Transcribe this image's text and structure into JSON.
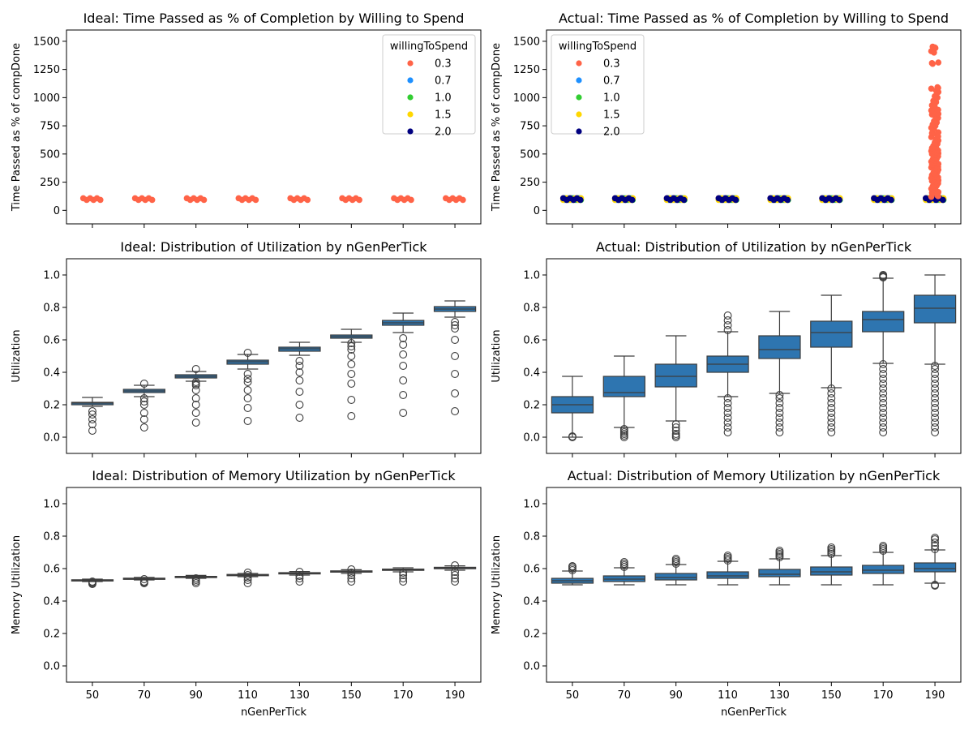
{
  "chart_data": [
    {
      "type": "scatter",
      "title": "Ideal: Time Passed as % of Completion by Willing to Spend",
      "xlabel": "",
      "ylabel": "Time Passed as % of compDone",
      "categories": [
        "50",
        "70",
        "90",
        "110",
        "130",
        "150",
        "170",
        "190"
      ],
      "ylim": [
        -120,
        1600
      ],
      "yticks": [
        0,
        250,
        500,
        750,
        1000,
        1250,
        1500
      ],
      "show_xticklabels": false,
      "legend": {
        "title": "willingToSpend",
        "placement": "top-right"
      },
      "series": [
        {
          "name": "0.3",
          "color": "#ff6347",
          "values": [
            100,
            100,
            100,
            100,
            100,
            100,
            100,
            100
          ]
        },
        {
          "name": "0.7",
          "color": "#1e90ff",
          "values": []
        },
        {
          "name": "1.0",
          "color": "#32cd32",
          "values": []
        },
        {
          "name": "1.5",
          "color": "#ffd700",
          "values": []
        },
        {
          "name": "2.0",
          "color": "#000080",
          "values": []
        }
      ]
    },
    {
      "type": "scatter",
      "title": "Actual: Time Passed as % of Completion by Willing to Spend",
      "xlabel": "",
      "ylabel": "Time Passed as % of compDone",
      "categories": [
        "50",
        "70",
        "90",
        "110",
        "130",
        "150",
        "170",
        "190"
      ],
      "ylim": [
        -120,
        1600
      ],
      "yticks": [
        0,
        250,
        500,
        750,
        1000,
        1250,
        1500
      ],
      "show_xticklabels": false,
      "legend": {
        "title": "willingToSpend",
        "placement": "top-left"
      },
      "series": [
        {
          "name": "0.3",
          "color": "#ff6347",
          "values": [
            100,
            100,
            100,
            100,
            100,
            100,
            100,
            100
          ]
        },
        {
          "name": "0.7",
          "color": "#1e90ff",
          "values": [
            100,
            100,
            100,
            100,
            100,
            100,
            100,
            100
          ]
        },
        {
          "name": "1.0",
          "color": "#32cd32",
          "values": [
            100,
            100,
            100,
            100,
            100,
            100,
            100,
            100
          ]
        },
        {
          "name": "1.5",
          "color": "#ffd700",
          "values": [
            100,
            100,
            100,
            100,
            100,
            100,
            100,
            100
          ]
        },
        {
          "name": "2.0",
          "color": "#000080",
          "values": [
            100,
            100,
            100,
            100,
            100,
            100,
            100,
            100
          ]
        }
      ],
      "spread_category": "190",
      "spread_values": [
        120,
        150,
        180,
        200,
        220,
        240,
        260,
        280,
        300,
        320,
        340,
        360,
        380,
        400,
        420,
        440,
        460,
        480,
        500,
        520,
        540,
        560,
        590,
        620,
        650,
        680,
        720,
        750,
        780,
        820,
        850,
        880,
        920,
        960,
        1000,
        1050,
        1080,
        1300,
        1400,
        1440
      ]
    },
    {
      "type": "box",
      "title": "Ideal: Distribution of Utilization by nGenPerTick",
      "xlabel": "",
      "ylabel": "Utilization",
      "categories": [
        "50",
        "70",
        "90",
        "110",
        "130",
        "150",
        "170",
        "190"
      ],
      "ylim": [
        -0.1,
        1.1
      ],
      "yticks": [
        0.0,
        0.2,
        0.4,
        0.6,
        0.8,
        1.0
      ],
      "show_xticklabels": false,
      "color": "#2e75b0",
      "boxes": [
        {
          "whislo": 0.19,
          "q1": 0.2,
          "med": 0.21,
          "q3": 0.215,
          "whishi": 0.245,
          "fliers": [
            0.04,
            0.08,
            0.11,
            0.14,
            0.16
          ]
        },
        {
          "whislo": 0.25,
          "q1": 0.275,
          "med": 0.285,
          "q3": 0.295,
          "whishi": 0.32,
          "fliers": [
            0.06,
            0.11,
            0.15,
            0.2,
            0.22,
            0.24,
            0.33
          ]
        },
        {
          "whislo": 0.345,
          "q1": 0.365,
          "med": 0.375,
          "q3": 0.385,
          "whishi": 0.405,
          "fliers": [
            0.09,
            0.15,
            0.2,
            0.24,
            0.29,
            0.32,
            0.33,
            0.34,
            0.42
          ]
        },
        {
          "whislo": 0.42,
          "q1": 0.45,
          "med": 0.465,
          "q3": 0.475,
          "whishi": 0.51,
          "fliers": [
            0.1,
            0.18,
            0.24,
            0.29,
            0.34,
            0.36,
            0.39,
            0.52
          ]
        },
        {
          "whislo": 0.505,
          "q1": 0.53,
          "med": 0.545,
          "q3": 0.555,
          "whishi": 0.585,
          "fliers": [
            0.12,
            0.2,
            0.28,
            0.35,
            0.4,
            0.44,
            0.47
          ]
        },
        {
          "whislo": 0.585,
          "q1": 0.61,
          "med": 0.62,
          "q3": 0.63,
          "whishi": 0.665,
          "fliers": [
            0.13,
            0.23,
            0.33,
            0.39,
            0.45,
            0.5,
            0.54,
            0.56,
            0.58
          ]
        },
        {
          "whislo": 0.645,
          "q1": 0.69,
          "med": 0.705,
          "q3": 0.72,
          "whishi": 0.765,
          "fliers": [
            0.15,
            0.26,
            0.35,
            0.44,
            0.51,
            0.57,
            0.61
          ]
        },
        {
          "whislo": 0.74,
          "q1": 0.775,
          "med": 0.79,
          "q3": 0.805,
          "whishi": 0.84,
          "fliers": [
            0.16,
            0.27,
            0.39,
            0.5,
            0.6,
            0.67,
            0.69,
            0.71
          ]
        }
      ]
    },
    {
      "type": "box",
      "title": "Actual: Distribution of Utilization by nGenPerTick",
      "xlabel": "",
      "ylabel": "Utilization",
      "categories": [
        "50",
        "70",
        "90",
        "110",
        "130",
        "150",
        "170",
        "190"
      ],
      "ylim": [
        -0.1,
        1.1
      ],
      "yticks": [
        0.0,
        0.2,
        0.4,
        0.6,
        0.8,
        1.0
      ],
      "show_xticklabels": false,
      "color": "#2e75b0",
      "boxes": [
        {
          "whislo": 0.0,
          "q1": 0.15,
          "med": 0.2,
          "q3": 0.25,
          "whishi": 0.375,
          "fliers": [
            0.0,
            0.005
          ]
        },
        {
          "whislo": 0.06,
          "q1": 0.25,
          "med": 0.275,
          "q3": 0.375,
          "whishi": 0.5,
          "fliers": [
            0.0,
            0.01,
            0.02,
            0.03,
            0.04,
            0.05
          ]
        },
        {
          "whislo": 0.1,
          "q1": 0.31,
          "med": 0.375,
          "q3": 0.45,
          "whishi": 0.625,
          "fliers": [
            0.0,
            0.01,
            0.02,
            0.04,
            0.06,
            0.08
          ]
        },
        {
          "whislo": 0.25,
          "q1": 0.4,
          "med": 0.45,
          "q3": 0.5,
          "whishi": 0.65,
          "fliers": [
            0.03,
            0.06,
            0.09,
            0.12,
            0.15,
            0.18,
            0.21,
            0.24,
            0.66,
            0.69,
            0.72,
            0.75
          ]
        },
        {
          "whislo": 0.27,
          "q1": 0.485,
          "med": 0.54,
          "q3": 0.625,
          "whishi": 0.775,
          "fliers": [
            0.03,
            0.06,
            0.09,
            0.12,
            0.15,
            0.18,
            0.21,
            0.24,
            0.26
          ]
        },
        {
          "whislo": 0.305,
          "q1": 0.555,
          "med": 0.645,
          "q3": 0.715,
          "whishi": 0.875,
          "fliers": [
            0.03,
            0.06,
            0.09,
            0.12,
            0.15,
            0.18,
            0.21,
            0.24,
            0.27,
            0.3
          ]
        },
        {
          "whislo": 0.455,
          "q1": 0.65,
          "med": 0.725,
          "q3": 0.775,
          "whishi": 0.98,
          "fliers": [
            0.03,
            0.06,
            0.09,
            0.12,
            0.15,
            0.18,
            0.21,
            0.24,
            0.27,
            0.3,
            0.33,
            0.36,
            0.39,
            0.42,
            0.45,
            0.985,
            0.99,
            0.995,
            1.0
          ]
        },
        {
          "whislo": 0.45,
          "q1": 0.705,
          "med": 0.795,
          "q3": 0.875,
          "whishi": 1.0,
          "fliers": [
            0.03,
            0.06,
            0.09,
            0.12,
            0.15,
            0.18,
            0.21,
            0.24,
            0.27,
            0.3,
            0.33,
            0.36,
            0.39,
            0.42,
            0.44
          ]
        }
      ]
    },
    {
      "type": "box",
      "title": "Ideal: Distribution of Memory Utilization by nGenPerTick",
      "xlabel": "nGenPerTick",
      "ylabel": "Memory Utilization",
      "categories": [
        "50",
        "70",
        "90",
        "110",
        "130",
        "150",
        "170",
        "190"
      ],
      "ylim": [
        -0.1,
        1.1
      ],
      "yticks": [
        0.0,
        0.2,
        0.4,
        0.6,
        0.8,
        1.0
      ],
      "show_xticklabels": true,
      "color": "#2e75b0",
      "boxes": [
        {
          "whislo": 0.52,
          "q1": 0.525,
          "med": 0.528,
          "q3": 0.531,
          "whishi": 0.535,
          "fliers": [
            0.505,
            0.51,
            0.515,
            0.52
          ]
        },
        {
          "whislo": 0.53,
          "q1": 0.535,
          "med": 0.538,
          "q3": 0.541,
          "whishi": 0.546,
          "fliers": [
            0.51,
            0.515,
            0.52,
            0.535
          ]
        },
        {
          "whislo": 0.54,
          "q1": 0.546,
          "med": 0.549,
          "q3": 0.552,
          "whishi": 0.558,
          "fliers": [
            0.51,
            0.52,
            0.53,
            0.54
          ]
        },
        {
          "whislo": 0.55,
          "q1": 0.556,
          "med": 0.56,
          "q3": 0.564,
          "whishi": 0.57,
          "fliers": [
            0.51,
            0.53,
            0.545,
            0.56,
            0.575
          ]
        },
        {
          "whislo": 0.56,
          "q1": 0.567,
          "med": 0.571,
          "q3": 0.575,
          "whishi": 0.582,
          "fliers": [
            0.52,
            0.54,
            0.555,
            0.58
          ]
        },
        {
          "whislo": 0.57,
          "q1": 0.578,
          "med": 0.582,
          "q3": 0.586,
          "whishi": 0.593,
          "fliers": [
            0.52,
            0.54,
            0.56,
            0.575,
            0.595
          ]
        },
        {
          "whislo": 0.58,
          "q1": 0.589,
          "med": 0.593,
          "q3": 0.597,
          "whishi": 0.605,
          "fliers": [
            0.52,
            0.54,
            0.56,
            0.575
          ]
        },
        {
          "whislo": 0.59,
          "q1": 0.599,
          "med": 0.604,
          "q3": 0.608,
          "whishi": 0.617,
          "fliers": [
            0.52,
            0.54,
            0.56,
            0.58,
            0.62
          ]
        }
      ]
    },
    {
      "type": "box",
      "title": "Actual: Distribution of Memory Utilization by nGenPerTick",
      "xlabel": "nGenPerTick",
      "ylabel": "Memory Utilization",
      "categories": [
        "50",
        "70",
        "90",
        "110",
        "130",
        "150",
        "170",
        "190"
      ],
      "ylim": [
        -0.1,
        1.1
      ],
      "yticks": [
        0.0,
        0.2,
        0.4,
        0.6,
        0.8,
        1.0
      ],
      "show_xticklabels": true,
      "color": "#2e75b0",
      "boxes": [
        {
          "whislo": 0.5,
          "q1": 0.51,
          "med": 0.525,
          "q3": 0.54,
          "whishi": 0.585,
          "fliers": [
            0.59,
            0.6,
            0.61,
            0.615
          ]
        },
        {
          "whislo": 0.5,
          "q1": 0.52,
          "med": 0.535,
          "q3": 0.555,
          "whishi": 0.605,
          "fliers": [
            0.61,
            0.62,
            0.63,
            0.64
          ]
        },
        {
          "whislo": 0.5,
          "q1": 0.53,
          "med": 0.545,
          "q3": 0.57,
          "whishi": 0.625,
          "fliers": [
            0.63,
            0.64,
            0.65,
            0.66
          ]
        },
        {
          "whislo": 0.5,
          "q1": 0.54,
          "med": 0.555,
          "q3": 0.58,
          "whishi": 0.645,
          "fliers": [
            0.65,
            0.66,
            0.67,
            0.68
          ]
        },
        {
          "whislo": 0.5,
          "q1": 0.55,
          "med": 0.565,
          "q3": 0.595,
          "whishi": 0.66,
          "fliers": [
            0.67,
            0.68,
            0.69,
            0.7,
            0.71
          ]
        },
        {
          "whislo": 0.5,
          "q1": 0.56,
          "med": 0.58,
          "q3": 0.61,
          "whishi": 0.68,
          "fliers": [
            0.69,
            0.7,
            0.71,
            0.72,
            0.73
          ]
        },
        {
          "whislo": 0.5,
          "q1": 0.57,
          "med": 0.59,
          "q3": 0.62,
          "whishi": 0.7,
          "fliers": [
            0.71,
            0.72,
            0.73,
            0.74
          ]
        },
        {
          "whislo": 0.51,
          "q1": 0.58,
          "med": 0.6,
          "q3": 0.635,
          "whishi": 0.715,
          "fliers": [
            0.495,
            0.5,
            0.72,
            0.74,
            0.76,
            0.78,
            0.79
          ]
        }
      ]
    }
  ]
}
